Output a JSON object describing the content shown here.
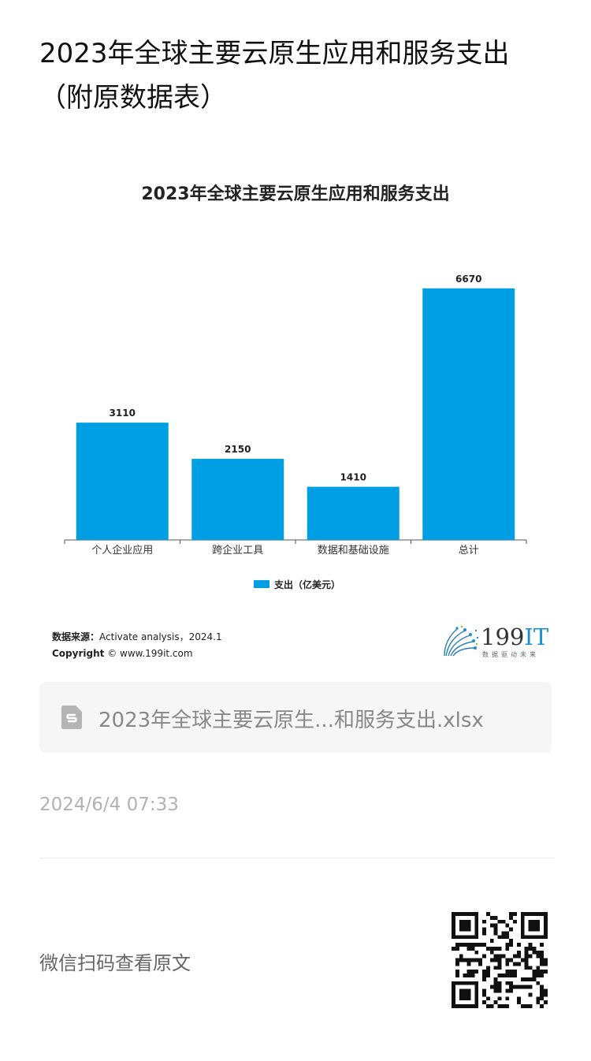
{
  "article": {
    "title": "2023年全球主要云原生应用和服务支出（附原数据表）"
  },
  "chart_data": {
    "type": "bar",
    "title": "2023年全球主要云原生应用和服务支出",
    "categories": [
      "个人企业应用",
      "跨企业工具",
      "数据和基础设施",
      "总计"
    ],
    "series": [
      {
        "name": "支出（亿美元）",
        "values": [
          3110,
          2150,
          1410,
          6670
        ]
      }
    ],
    "data_labels": [
      "3110",
      "2150",
      "1410",
      "6670"
    ],
    "ylim": [
      0,
      7000
    ],
    "grid": false,
    "legend": "bottom-center",
    "bar_color": "#009fe3"
  },
  "source": {
    "label": "数据来源：",
    "text": "Activate analysis，2024.1",
    "copyright_label": "Copyright",
    "copyright_text": "© www.199it.com"
  },
  "logo": {
    "number": "199",
    "suffix": "IT",
    "tagline": "数据驱动未来"
  },
  "attachment": {
    "file_name": "2023年全球主要云原生...和服务支出.xlsx",
    "icon": "spreadsheet-file-icon"
  },
  "meta": {
    "date": "2024/6/4 07:33"
  },
  "footer": {
    "qr_prompt": "微信扫码查看原文"
  }
}
